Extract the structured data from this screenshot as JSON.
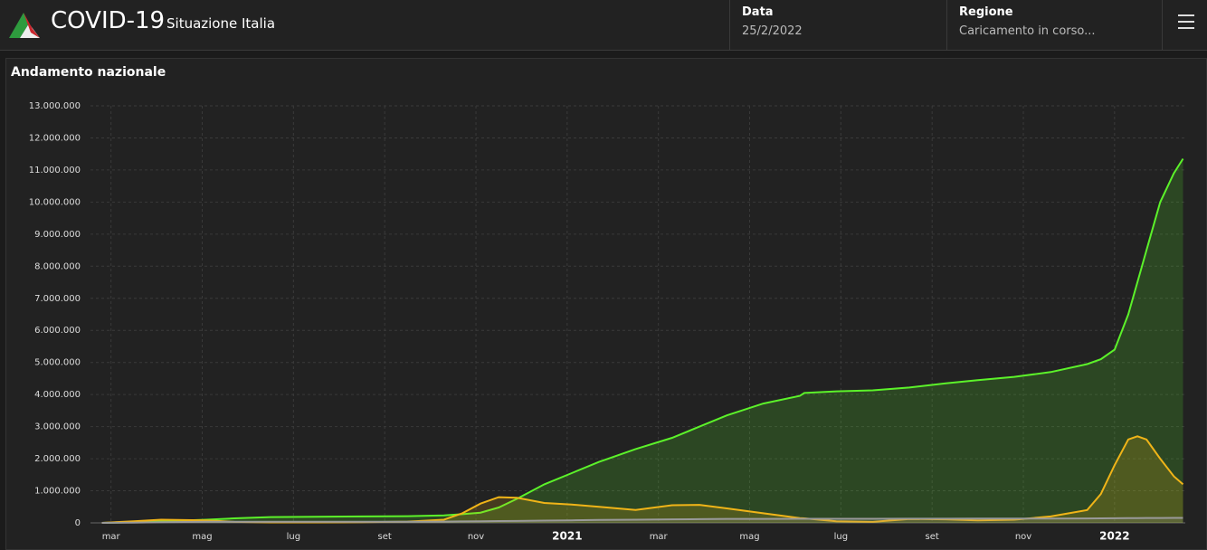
{
  "header": {
    "title": "COVID-19",
    "subtitle": "Situazione Italia",
    "date_label": "Data",
    "date_value": "25/2/2022",
    "region_label": "Regione",
    "region_value": "Caricamento in corso..."
  },
  "chart_data": {
    "type": "line",
    "title": "Andamento nazionale",
    "x": [
      -0.2,
      0.5,
      1.1,
      2.1,
      2.7,
      3.5,
      4.5,
      5.5,
      6.5,
      7.3,
      7.7,
      8.1,
      8.5,
      8.9,
      9.5,
      10.1,
      10.7,
      11.5,
      12.3,
      12.9,
      13.5,
      14.3,
      15.1,
      15.2,
      15.9,
      16.7,
      17.5,
      18.3,
      19.0,
      19.8,
      20.6,
      21.4,
      21.7,
      22.0,
      22.3,
      22.5,
      22.7,
      23.0,
      23.3,
      23.5
    ],
    "series": [
      {
        "color": "#5cf22a",
        "values": [
          0,
          20000,
          50000,
          100000,
          140000,
          180000,
          190000,
          200000,
          210000,
          235000,
          270000,
          320000,
          480000,
          750000,
          1200000,
          1550000,
          1900000,
          2300000,
          2650000,
          3000000,
          3350000,
          3720000,
          3960000,
          4050000,
          4100000,
          4130000,
          4220000,
          4350000,
          4450000,
          4550000,
          4700000,
          4950000,
          5100000,
          5400000,
          6500000,
          7500000,
          8500000,
          10000000,
          10900000,
          11350000
        ]
      },
      {
        "color": "#f0b418",
        "values": [
          0,
          50000,
          100000,
          80000,
          30000,
          15000,
          15000,
          20000,
          40000,
          100000,
          300000,
          600000,
          800000,
          780000,
          620000,
          570000,
          500000,
          400000,
          550000,
          560000,
          450000,
          300000,
          150000,
          140000,
          50000,
          30000,
          120000,
          110000,
          80000,
          100000,
          200000,
          400000,
          900000,
          1800000,
          2600000,
          2700000,
          2600000,
          2000000,
          1450000,
          1200000
        ]
      },
      {
        "color": "#9a9a9a",
        "values": [
          0,
          5000,
          20000,
          33000,
          35000,
          35000,
          36000,
          36000,
          37000,
          40000,
          45000,
          50000,
          55000,
          60000,
          70000,
          80000,
          90000,
          100000,
          110000,
          117000,
          123000,
          125000,
          127000,
          127000,
          128000,
          128000,
          130000,
          131000,
          132000,
          134000,
          136000,
          138000,
          140000,
          143000,
          146000,
          149000,
          151000,
          153000,
          154000,
          155000
        ]
      }
    ],
    "xlim": [
      -0.45,
      23.55
    ],
    "xticks": [
      {
        "value": 0,
        "label": "mar"
      },
      {
        "value": 2,
        "label": "mag"
      },
      {
        "value": 4,
        "label": "lug"
      },
      {
        "value": 6,
        "label": "set"
      },
      {
        "value": 8,
        "label": "nov"
      },
      {
        "value": 10,
        "label": "2021"
      },
      {
        "value": 12,
        "label": "mar"
      },
      {
        "value": 14,
        "label": "mag"
      },
      {
        "value": 16,
        "label": "lug"
      },
      {
        "value": 18,
        "label": "set"
      },
      {
        "value": 20,
        "label": "nov"
      },
      {
        "value": 22,
        "label": "2022"
      }
    ],
    "ylim": [
      0,
      13000000
    ],
    "yticks": [
      0,
      {
        "value": 1000000,
        "label": "1.000.000"
      },
      {
        "value": 2000000,
        "label": "2.000.000"
      },
      {
        "value": 3000000,
        "label": "3.000.000"
      },
      {
        "value": 4000000,
        "label": "4.000.000"
      },
      {
        "value": 5000000,
        "label": "5.000.000"
      },
      {
        "value": 6000000,
        "label": "6.000.000"
      },
      {
        "value": 7000000,
        "label": "7.000.000"
      },
      {
        "value": 8000000,
        "label": "8.000.000"
      },
      {
        "value": 9000000,
        "label": "9.000.000"
      },
      {
        "value": 10000000,
        "label": "10.000.000"
      },
      {
        "value": 11000000,
        "label": "11.000.000"
      },
      {
        "value": 12000000,
        "label": "12.000.000"
      },
      {
        "value": 13000000,
        "label": "13.000.000"
      }
    ],
    "grid": true,
    "area": true
  }
}
